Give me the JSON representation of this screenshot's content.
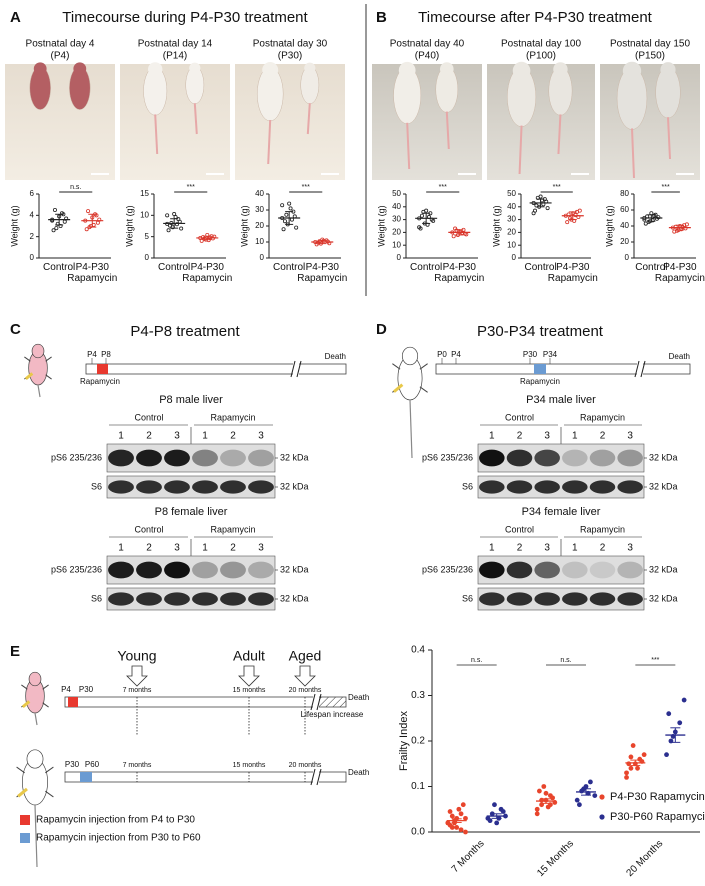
{
  "panel_a": {
    "label": "A",
    "title": "Timecourse during P4-P30 treatment",
    "photos": [
      {
        "day": "Postnatal day 4",
        "code": "(P4)"
      },
      {
        "day": "Postnatal day 14",
        "code": "(P14)"
      },
      {
        "day": "Postnatal day 30",
        "code": "(P30)"
      }
    ]
  },
  "panel_b": {
    "label": "B",
    "title": "Timecourse after P4-P30 treatment",
    "photos": [
      {
        "day": "Postnatal day 40",
        "code": "(P40)"
      },
      {
        "day": "Postnatal day 100",
        "code": "(P100)"
      },
      {
        "day": "Postnatal day 150",
        "code": "(P150)"
      }
    ]
  },
  "panel_c": {
    "label": "C",
    "title": "P4-P8 treatment",
    "timeline": {
      "marks": [
        "P4",
        "P8"
      ],
      "drug": "Rapamycin",
      "death": "Death"
    },
    "blots": [
      {
        "title": "P8 male liver",
        "groups": [
          "Control",
          "Rapamycin"
        ],
        "lanes": [
          "1",
          "2",
          "3"
        ],
        "rows": [
          "pS6 235/236",
          "S6"
        ],
        "size": "32 kDa"
      },
      {
        "title": "P8 female liver",
        "groups": [
          "Control",
          "Rapamycin"
        ],
        "lanes": [
          "1",
          "2",
          "3"
        ],
        "rows": [
          "pS6 235/236",
          "S6"
        ],
        "size": "32 kDa"
      }
    ]
  },
  "panel_d": {
    "label": "D",
    "title": "P30-P34 treatment",
    "timeline": {
      "marks": [
        "P0",
        "P4",
        "P30",
        "P34"
      ],
      "drug": "Rapamycin",
      "death": "Death"
    },
    "blots": [
      {
        "title": "P34 male liver",
        "groups": [
          "Control",
          "Rapamycin"
        ],
        "lanes": [
          "1",
          "2",
          "3"
        ],
        "rows": [
          "pS6 235/236",
          "S6"
        ],
        "size": "32 kDa"
      },
      {
        "title": "P34 female liver",
        "groups": [
          "Control",
          "Rapamycin"
        ],
        "lanes": [
          "1",
          "2",
          "3"
        ],
        "rows": [
          "pS6 235/236",
          "S6"
        ],
        "size": "32 kDa"
      }
    ]
  },
  "panel_e": {
    "label": "E",
    "stages": [
      "Young",
      "Adult",
      "Aged"
    ],
    "timeline_1": {
      "marks": [
        "P4",
        "P30"
      ],
      "months": [
        "7 months",
        "15 months",
        "20 months"
      ],
      "death": "Death",
      "note": "Lifespan increase"
    },
    "timeline_2": {
      "marks": [
        "P30",
        "P60"
      ],
      "months": [
        "7 months",
        "15 months",
        "20 months"
      ],
      "death": "Death"
    },
    "legend": [
      "Rapamycin injection from P4 to P30",
      "Rapamycin injection from P30 to P60"
    ]
  },
  "chart_data": [
    {
      "type": "scatter",
      "ylabel": "Weight (g)",
      "categories": [
        "Control",
        "P4-P30 Rapamycin"
      ],
      "significance": "n.s.",
      "ylim": [
        0,
        6
      ],
      "yticks": [
        0,
        2,
        4,
        6
      ],
      "series": [
        {
          "color": "#222222",
          "values": [
            3.6,
            3.2,
            4.1,
            2.6,
            3.9,
            3.4,
            4.5,
            3.0,
            3.7,
            2.8,
            4.2,
            3.5
          ],
          "mean": 3.6,
          "err": 0.5
        },
        {
          "color": "#d9352a",
          "values": [
            3.5,
            3.0,
            4.0,
            2.7,
            3.8,
            3.3,
            4.4,
            3.1,
            3.6,
            2.9,
            4.1
          ],
          "mean": 3.5,
          "err": 0.6
        }
      ]
    },
    {
      "type": "scatter",
      "ylabel": "Weight (g)",
      "categories": [
        "Control",
        "P4-P30 Rapamycin"
      ],
      "significance": "***",
      "ylim": [
        0,
        15
      ],
      "yticks": [
        0,
        5,
        10,
        15
      ],
      "series": [
        {
          "color": "#222222",
          "values": [
            8.0,
            7.2,
            9.1,
            6.5,
            10.3,
            8.5,
            7.6,
            9.6,
            6.9,
            8.2,
            7.9,
            10.0
          ],
          "mean": 8.1,
          "err": 1.1
        },
        {
          "color": "#d9352a",
          "values": [
            4.7,
            4.3,
            5.1,
            4.0,
            5.4,
            4.6,
            4.9,
            4.2,
            5.0,
            4.5,
            4.8
          ],
          "mean": 4.7,
          "err": 0.4
        }
      ]
    },
    {
      "type": "scatter",
      "ylabel": "Weight (g)",
      "categories": [
        "Control",
        "P4-P30 Rapamycin"
      ],
      "significance": "***",
      "ylim": [
        0,
        40
      ],
      "yticks": [
        0,
        10,
        20,
        30,
        40
      ],
      "series": [
        {
          "color": "#222222",
          "values": [
            25,
            21,
            29,
            18,
            34,
            26,
            23,
            31,
            19,
            27,
            24,
            33
          ],
          "mean": 25,
          "err": 4
        },
        {
          "color": "#d9352a",
          "values": [
            10,
            9,
            11,
            8.5,
            11.5,
            10.2,
            9.6,
            10.8,
            9.2,
            10.5
          ],
          "mean": 10,
          "err": 1
        }
      ]
    },
    {
      "type": "scatter",
      "ylabel": "Weight (g)",
      "categories": [
        "Control",
        "P4-P30 Rapamycin"
      ],
      "significance": "***",
      "ylim": [
        0,
        50
      ],
      "yticks": [
        0,
        10,
        20,
        30,
        40,
        50
      ],
      "series": [
        {
          "color": "#222222",
          "values": [
            31,
            27,
            35,
            23,
            37,
            30,
            33,
            26,
            29,
            36,
            32,
            24
          ],
          "mean": 31,
          "err": 4
        },
        {
          "color": "#d9352a",
          "values": [
            20,
            18,
            22,
            17,
            21,
            19,
            23,
            20.5,
            18.5,
            21.5,
            19.5
          ],
          "mean": 20,
          "err": 2
        }
      ]
    },
    {
      "type": "scatter",
      "ylabel": "Weight (g)",
      "categories": [
        "Control",
        "P4-P30 Rapamycin"
      ],
      "significance": "***",
      "ylim": [
        0,
        50
      ],
      "yticks": [
        0,
        10,
        20,
        30,
        40,
        50
      ],
      "series": [
        {
          "color": "#222222",
          "values": [
            43,
            40,
            46,
            37,
            48,
            44,
            41,
            45,
            39,
            47,
            42,
            35
          ],
          "mean": 43,
          "err": 3
        },
        {
          "color": "#d9352a",
          "values": [
            33,
            30,
            36,
            28,
            35,
            32,
            34,
            29,
            37,
            31,
            33.5
          ],
          "mean": 33,
          "err": 3
        }
      ]
    },
    {
      "type": "scatter",
      "ylabel": "Weight (g)",
      "categories": [
        "Control",
        "P4-P30 Rapamycin"
      ],
      "significance": "***",
      "ylim": [
        0,
        80
      ],
      "yticks": [
        0,
        20,
        40,
        60,
        80
      ],
      "series": [
        {
          "color": "#222222",
          "values": [
            50,
            46,
            54,
            43,
            56,
            49,
            52,
            47,
            51,
            45,
            53,
            48
          ],
          "mean": 50,
          "err": 4
        },
        {
          "color": "#d9352a",
          "values": [
            38,
            35,
            41,
            33,
            40,
            37,
            39,
            36,
            42,
            34,
            38.5
          ],
          "mean": 38,
          "err": 3
        }
      ]
    },
    {
      "type": "dot",
      "ylabel": "Frailty Index",
      "categories": [
        "7 Months",
        "15 Months",
        "20 Months"
      ],
      "significance": [
        "n.s.",
        "n.s.",
        "***"
      ],
      "ylim": [
        0,
        0.4
      ],
      "yticks": [
        {
          "value": 0,
          "label": "0.0"
        },
        0.1,
        0.2,
        0.3,
        0.4
      ],
      "legend": "lower right",
      "series": [
        {
          "name": "P4-P30 Rapamycin",
          "color": "#e8452c",
          "values": [
            [
              0.02,
              0.01,
              0.03,
              0.04,
              0.0,
              0.015,
              0.025,
              0.05,
              0.06,
              0.02,
              0.035,
              0.01,
              0.005,
              0.03,
              0.045,
              0.02
            ],
            [
              0.05,
              0.06,
              0.07,
              0.08,
              0.065,
              0.09,
              0.1,
              0.055,
              0.075,
              0.04,
              0.07,
              0.085,
              0.06
            ],
            [
              0.13,
              0.14,
              0.15,
              0.16,
              0.17,
              0.15,
              0.19,
              0.14,
              0.155,
              0.12,
              0.165
            ]
          ],
          "mean": [
            0.025,
            0.068,
            0.152
          ],
          "err": [
            0.004,
            0.005,
            0.006
          ]
        },
        {
          "name": "P30-P60 Rapamycin",
          "color": "#2b2f8f",
          "values": [
            [
              0.03,
              0.04,
              0.02,
              0.05,
              0.035,
              0.025,
              0.06,
              0.03,
              0.045
            ],
            [
              0.07,
              0.09,
              0.1,
              0.11,
              0.08,
              0.06,
              0.095,
              0.085
            ],
            [
              0.17,
              0.2,
              0.22,
              0.24,
              0.29,
              0.26,
              0.21
            ]
          ],
          "mean": [
            0.035,
            0.088,
            0.213
          ],
          "err": [
            0.005,
            0.007,
            0.016
          ]
        }
      ]
    }
  ]
}
